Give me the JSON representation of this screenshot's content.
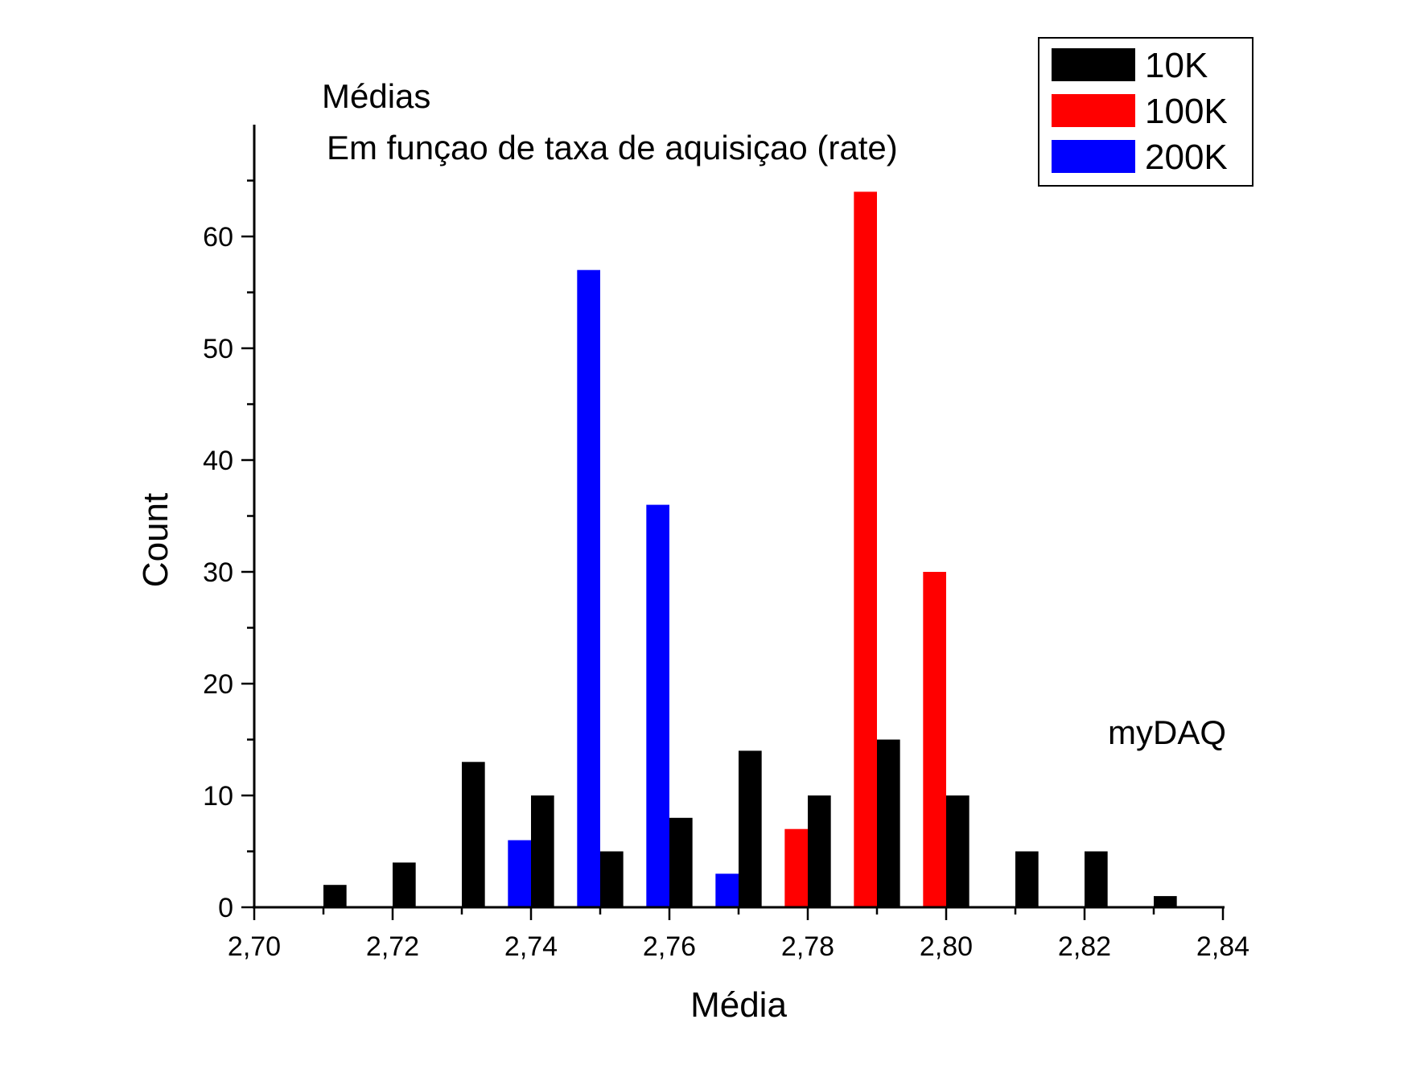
{
  "chart_data": {
    "type": "bar",
    "title": "Médias",
    "subtitle": "Em funçao de taxa de aquisiçao (rate)",
    "annotation": "myDAQ",
    "xlabel": "Média",
    "ylabel": "Count",
    "xlim": [
      2.7,
      2.84
    ],
    "ylim": [
      0,
      70
    ],
    "x_ticks": [
      2.7,
      2.72,
      2.74,
      2.76,
      2.78,
      2.8,
      2.82,
      2.84
    ],
    "x_tick_labels": [
      "2,70",
      "2,72",
      "2,74",
      "2,76",
      "2,78",
      "2,80",
      "2,82",
      "2,84"
    ],
    "y_ticks": [
      0,
      10,
      20,
      30,
      40,
      50,
      60
    ],
    "y_tick_labels": [
      "0",
      "10",
      "20",
      "30",
      "40",
      "50",
      "60"
    ],
    "legend_position": "top-right",
    "series": [
      {
        "name": "10K",
        "color": "#000000",
        "x": [
          2.71,
          2.72,
          2.73,
          2.74,
          2.75,
          2.76,
          2.77,
          2.78,
          2.79,
          2.8,
          2.81,
          2.82,
          2.83
        ],
        "values": [
          2,
          4,
          13,
          10,
          5,
          8,
          14,
          10,
          15,
          10,
          5,
          5,
          1
        ]
      },
      {
        "name": "100K",
        "color": "#ff0000",
        "x": [
          2.78,
          2.79,
          2.8
        ],
        "values": [
          7,
          64,
          30
        ]
      },
      {
        "name": "200K",
        "color": "#0000ff",
        "x": [
          2.74,
          2.75,
          2.76,
          2.77
        ],
        "values": [
          6,
          57,
          36,
          3
        ]
      }
    ]
  }
}
